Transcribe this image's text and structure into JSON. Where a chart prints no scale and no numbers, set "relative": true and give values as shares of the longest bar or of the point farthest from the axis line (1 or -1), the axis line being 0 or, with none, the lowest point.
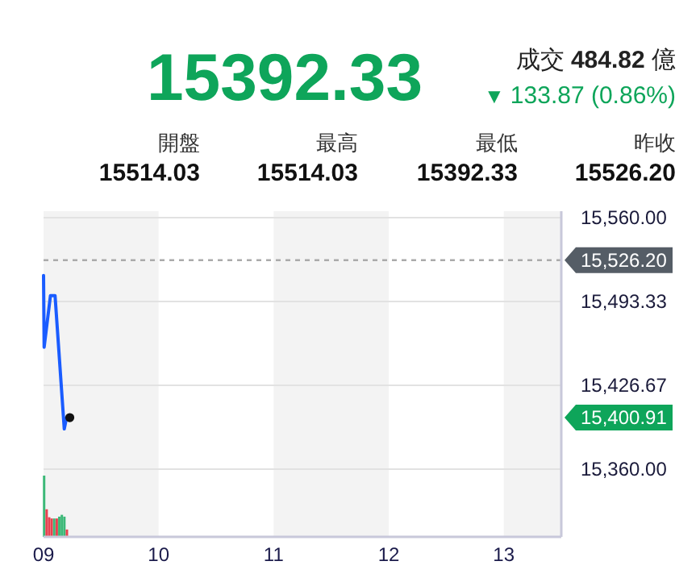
{
  "chart_data": [
    {
      "type": "other",
      "title": "15392.33",
      "color": "#0ea55a",
      "annotations": [
        "成交",
        "484.82",
        "億",
        "▼",
        "133.87 (0.86%)",
        "開盤",
        "15514.03",
        "最高",
        "15514.03",
        "最低",
        "15392.33",
        "昨收",
        "15526.20"
      ]
    },
    {
      "type": "line",
      "x": [
        9.0,
        9.005,
        9.06,
        9.1,
        9.18,
        9.2
      ],
      "series": [
        {
          "color": "#1a5cff",
          "values": [
            15514,
            15457,
            15498,
            15498,
            15392,
            15401
          ]
        },
        {
          "type": "scatter",
          "color": "#111111",
          "x": [
            9.228
          ],
          "values": [
            15401
          ],
          "marker": "circle"
        }
      ],
      "xlim": [
        9,
        13.5
      ],
      "ylim": [
        15360,
        15560
      ],
      "yticks": [
        {
          "value": 15560,
          "label": "15,560.00"
        },
        {
          "value": 15493.33,
          "label": "15,493.33"
        },
        {
          "value": 15426.67,
          "label": "15,426.67"
        },
        {
          "value": 15360,
          "label": "15,360.00"
        }
      ],
      "tick_labels": "y",
      "grid": "y",
      "marker": "none",
      "line_style": "solid",
      "ref_lines": [
        {
          "axis": "y",
          "value": 15526.2,
          "label": "15,526.20",
          "color": "#aaaaaa",
          "line_style": "dashed"
        }
      ],
      "bands": [
        {
          "axis": "x",
          "from": 9,
          "to": 10,
          "color": "#f3f3f3"
        },
        {
          "axis": "x",
          "from": 11,
          "to": 12,
          "color": "#f3f3f3"
        },
        {
          "axis": "x",
          "from": 13,
          "to": 13.5,
          "color": "#f3f3f3"
        }
      ],
      "annotations": [
        "15,400.91"
      ]
    },
    {
      "type": "bar",
      "relative": true,
      "x": [
        9.005,
        9.027,
        9.049,
        9.071,
        9.093,
        9.115,
        9.137,
        9.159,
        9.181,
        9.203
      ],
      "values": [
        1,
        0.45,
        0.32,
        0.3,
        0.3,
        0.3,
        0.33,
        0.36,
        0.33,
        0.12
      ],
      "colors": [
        "#3cb878",
        "#e8414f",
        "#e8414f",
        "#e8414f",
        "#3cb878",
        "#e8414f",
        "#3cb878",
        "#3cb878",
        "#3cb878",
        "#e8414f"
      ],
      "xlim": [
        9,
        13.5
      ],
      "xticks": [
        {
          "value": 9,
          "label": "09"
        },
        10,
        11,
        12,
        13
      ],
      "tick_labels": "x"
    }
  ]
}
